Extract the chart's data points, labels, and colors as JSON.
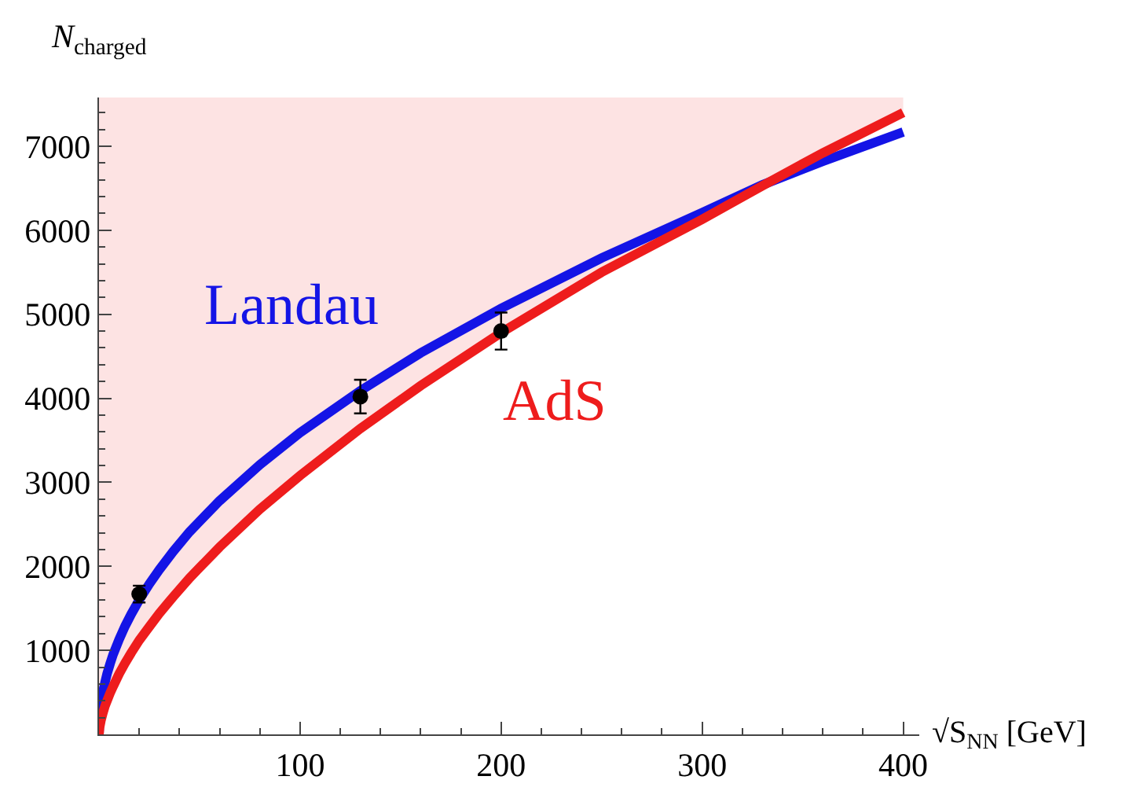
{
  "chart_data": {
    "type": "line",
    "xlabel": "√S$_{NN}$ [GeV]",
    "ylabel": "N$_{charged}$",
    "xlim": [
      0,
      408
    ],
    "ylim": [
      0,
      7580
    ],
    "xticks": [
      {
        "value": 20,
        "label": null
      },
      {
        "value": 40,
        "label": null
      },
      {
        "value": 60,
        "label": null
      },
      {
        "value": 80,
        "label": null
      },
      100,
      {
        "value": 120,
        "label": null
      },
      {
        "value": 140,
        "label": null
      },
      {
        "value": 160,
        "label": null
      },
      {
        "value": 180,
        "label": null
      },
      200,
      {
        "value": 220,
        "label": null
      },
      {
        "value": 240,
        "label": null
      },
      {
        "value": 260,
        "label": null
      },
      {
        "value": 280,
        "label": null
      },
      300,
      {
        "value": 320,
        "label": null
      },
      {
        "value": 340,
        "label": null
      },
      {
        "value": 360,
        "label": null
      },
      {
        "value": 380,
        "label": null
      },
      400
    ],
    "yticks": [
      {
        "value": 200,
        "label": null
      },
      {
        "value": 400,
        "label": null
      },
      {
        "value": 600,
        "label": null
      },
      {
        "value": 800,
        "label": null
      },
      1000,
      {
        "value": 1200,
        "label": null
      },
      {
        "value": 1400,
        "label": null
      },
      {
        "value": 1600,
        "label": null
      },
      {
        "value": 1800,
        "label": null
      },
      2000,
      {
        "value": 2200,
        "label": null
      },
      {
        "value": 2400,
        "label": null
      },
      {
        "value": 2600,
        "label": null
      },
      {
        "value": 2800,
        "label": null
      },
      3000,
      {
        "value": 3200,
        "label": null
      },
      {
        "value": 3400,
        "label": null
      },
      {
        "value": 3600,
        "label": null
      },
      {
        "value": 3800,
        "label": null
      },
      4000,
      {
        "value": 4200,
        "label": null
      },
      {
        "value": 4400,
        "label": null
      },
      {
        "value": 4600,
        "label": null
      },
      {
        "value": 4800,
        "label": null
      },
      5000,
      {
        "value": 5200,
        "label": null
      },
      {
        "value": 5400,
        "label": null
      },
      {
        "value": 5600,
        "label": null
      },
      {
        "value": 5800,
        "label": null
      },
      6000,
      {
        "value": 6200,
        "label": null
      },
      {
        "value": 6400,
        "label": null
      },
      {
        "value": 6600,
        "label": null
      },
      {
        "value": 6800,
        "label": null
      },
      7000,
      {
        "value": 7200,
        "label": null
      },
      {
        "value": 7400,
        "label": null
      }
    ],
    "legend": false,
    "series": [
      {
        "name": "Landau",
        "color": "#1414e6",
        "x": [
          0,
          0.3,
          1,
          2,
          3,
          4,
          5.5,
          7,
          10,
          13,
          16,
          20,
          25,
          30,
          37,
          45,
          60,
          80,
          100,
          130,
          160,
          200,
          250,
          300,
          330,
          360,
          400
        ],
        "values": [
          0,
          200,
          360,
          510,
          620,
          720,
          840,
          950,
          1130,
          1290,
          1430,
          1600,
          1790,
          1960,
          2180,
          2410,
          2780,
          3210,
          3590,
          4090,
          4540,
          5070,
          5670,
          6210,
          6540,
          6820,
          7170
        ]
      },
      {
        "name": "AdS",
        "color": "#ee1c1c",
        "x": [
          0,
          0.3,
          1,
          2,
          3,
          4,
          5.5,
          7,
          10,
          13,
          16,
          20,
          25,
          30,
          37,
          45,
          60,
          80,
          100,
          130,
          160,
          200,
          250,
          300,
          330,
          360,
          400
        ],
        "values": [
          0,
          80,
          170,
          260,
          340,
          400,
          490,
          570,
          720,
          850,
          970,
          1120,
          1280,
          1440,
          1640,
          1860,
          2230,
          2680,
          3080,
          3640,
          4150,
          4780,
          5500,
          6130,
          6530,
          6920,
          7400
        ],
        "lower": [
          0,
          80,
          170,
          260,
          340,
          400,
          490,
          570,
          720,
          850,
          970,
          1120,
          1280,
          1440,
          1640,
          1860,
          2230,
          2680,
          3080,
          3640,
          4150,
          4780,
          5500,
          6130,
          6530,
          6920,
          7400
        ],
        "upper": [
          7580,
          7580,
          7580,
          7580,
          7580,
          7580,
          7580,
          7580,
          7580,
          7580,
          7580,
          7580,
          7580,
          7580,
          7580,
          7580,
          7580,
          7580,
          7580,
          7580,
          7580,
          7580,
          7580,
          7580,
          7580,
          7580,
          7580
        ]
      },
      {
        "type": "scatter",
        "color": "#000000",
        "x": [
          20,
          130,
          200
        ],
        "values": [
          1670,
          4020,
          4800
        ],
        "errors": [
          100,
          200,
          220
        ]
      }
    ]
  }
}
